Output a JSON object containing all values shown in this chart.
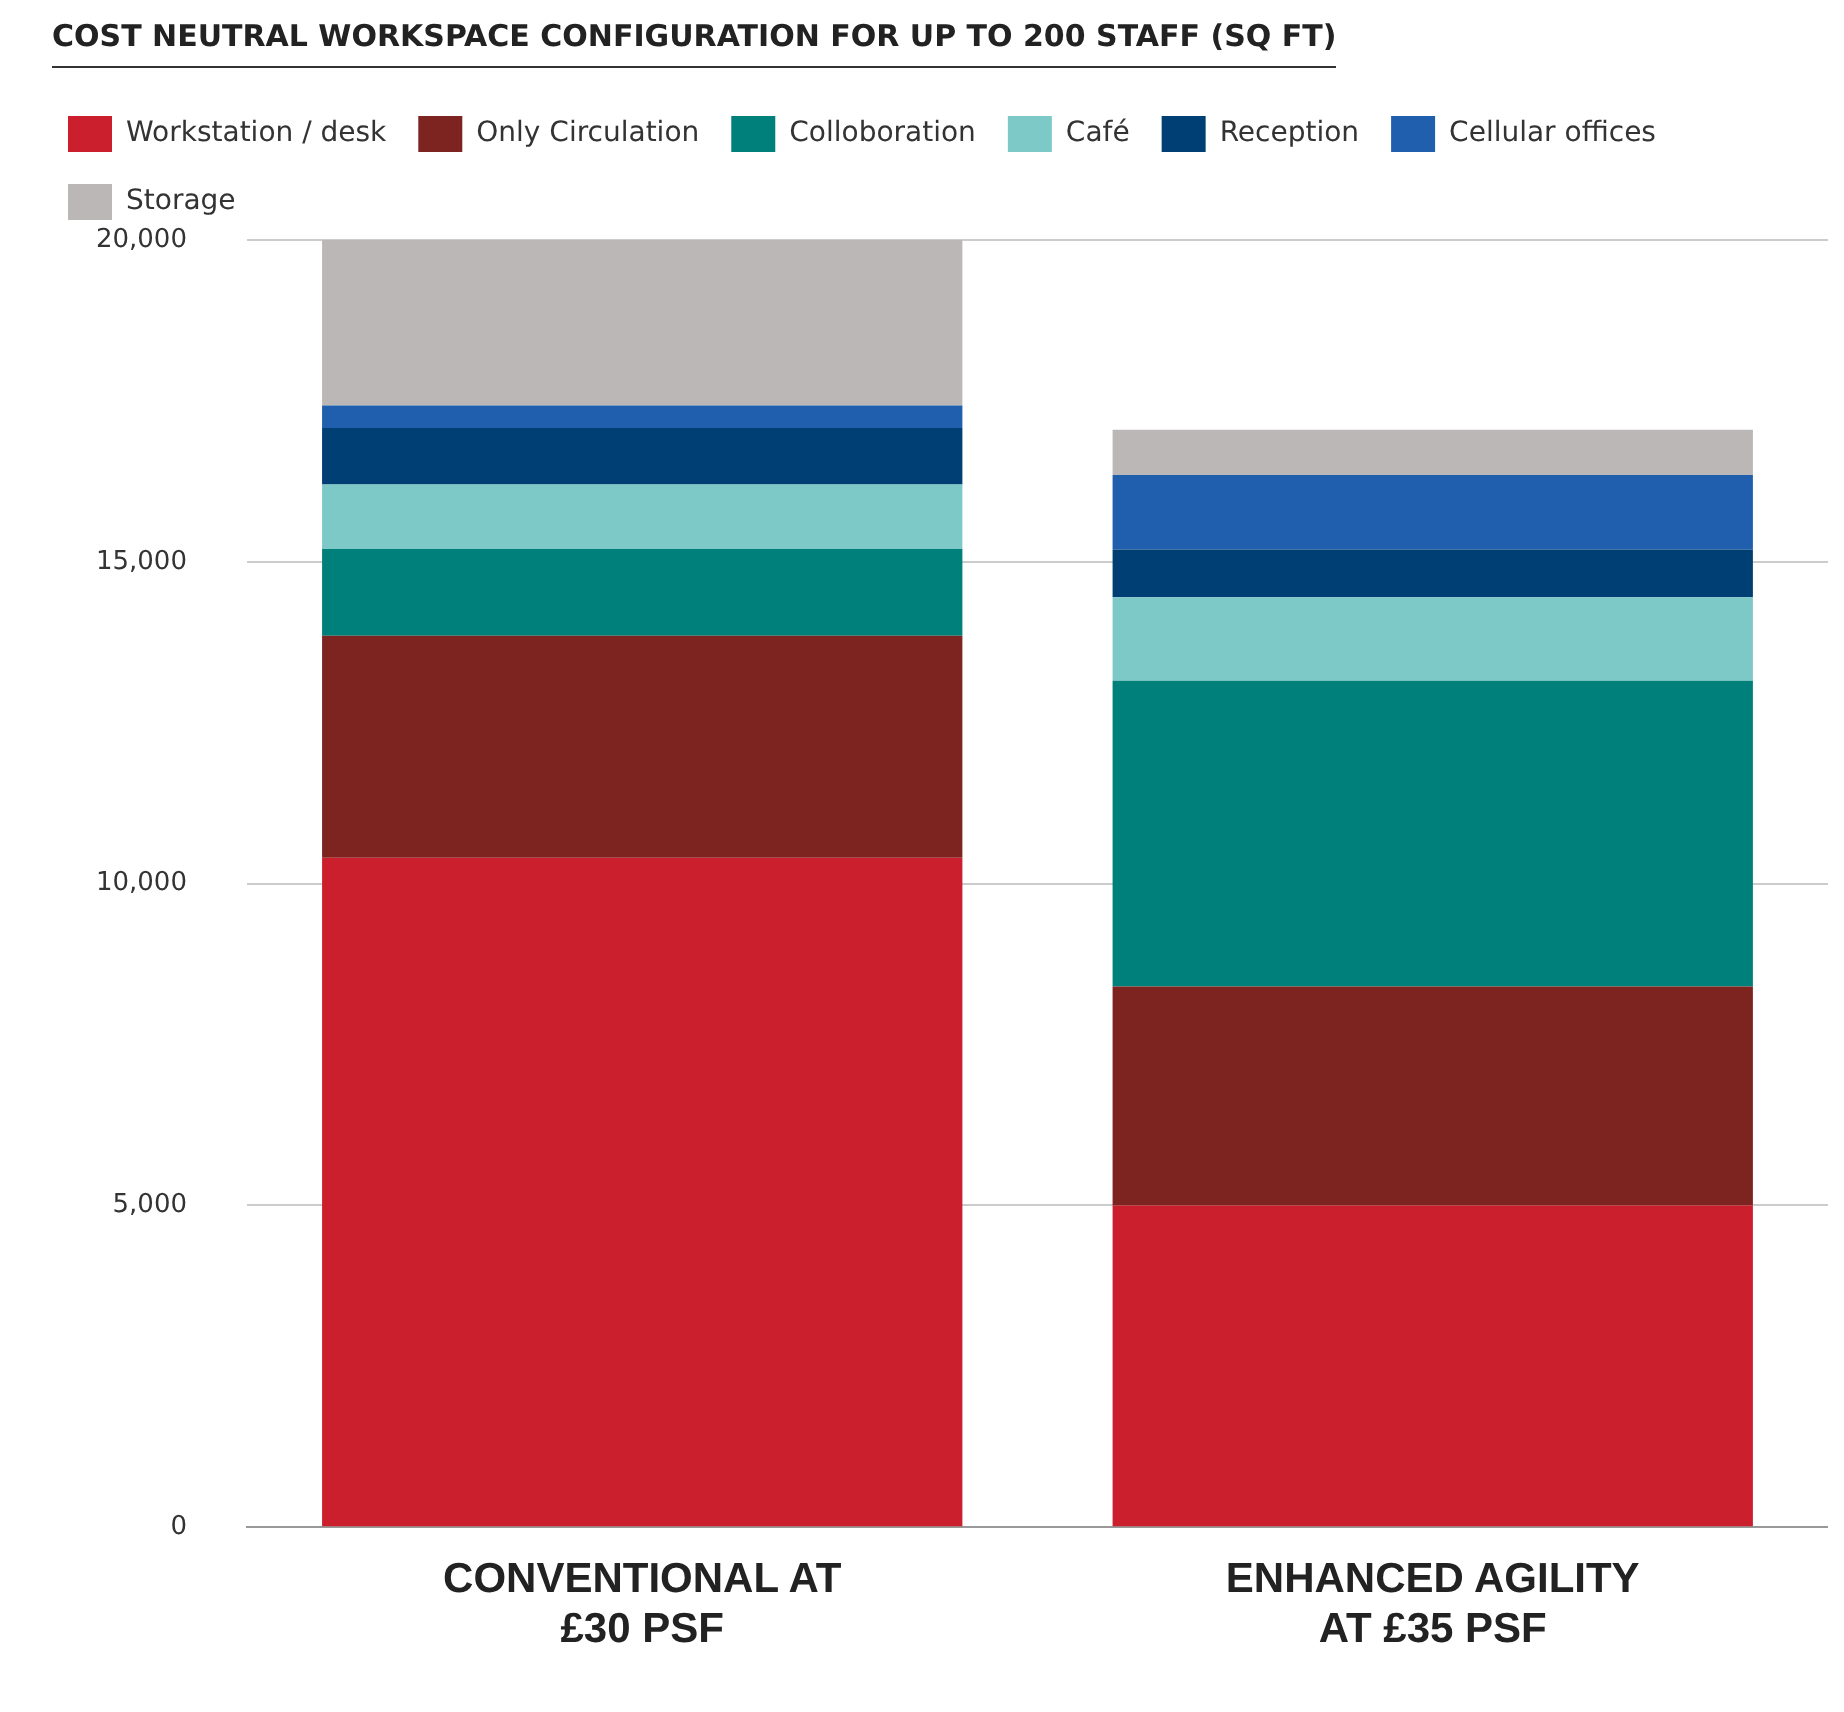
{
  "chart_data": {
    "type": "bar",
    "stacked": true,
    "title": "COST NEUTRAL WORKSPACE CONFIGURATION FOR UP TO 200 STAFF (SQ FT)",
    "categories": [
      "CONVENTIONAL AT £30 PSF",
      "ENHANCED AGILITY AT £35 PSF"
    ],
    "series": [
      {
        "name": "Workstation / desk",
        "color": "#cc1f2e",
        "values": [
          10400,
          5000
        ]
      },
      {
        "name": "Only Circulation",
        "color": "#7d2421",
        "values": [
          3450,
          3400
        ]
      },
      {
        "name": "Colloboration",
        "color": "#00807a",
        "values": [
          1350,
          4750
        ]
      },
      {
        "name": "Café",
        "color": "#7cc9c8",
        "values": [
          1000,
          1300
        ]
      },
      {
        "name": "Reception",
        "color": "#003f73",
        "values": [
          880,
          740
        ]
      },
      {
        "name": "Cellular offices",
        "color": "#1f5fae",
        "values": [
          350,
          1160
        ]
      },
      {
        "name": "Storage",
        "color": "#bbb7b6",
        "values": [
          2570,
          700
        ]
      }
    ],
    "ylim": [
      0,
      20000
    ],
    "yticks": [
      {
        "value": 0,
        "label": "0"
      },
      {
        "value": 5000,
        "label": "5,000"
      },
      {
        "value": 10000,
        "label": "10,000"
      },
      {
        "value": 15000,
        "label": "15,000"
      },
      {
        "value": 20000,
        "label": "20,000"
      }
    ],
    "grid": "y",
    "legend": "top left"
  }
}
